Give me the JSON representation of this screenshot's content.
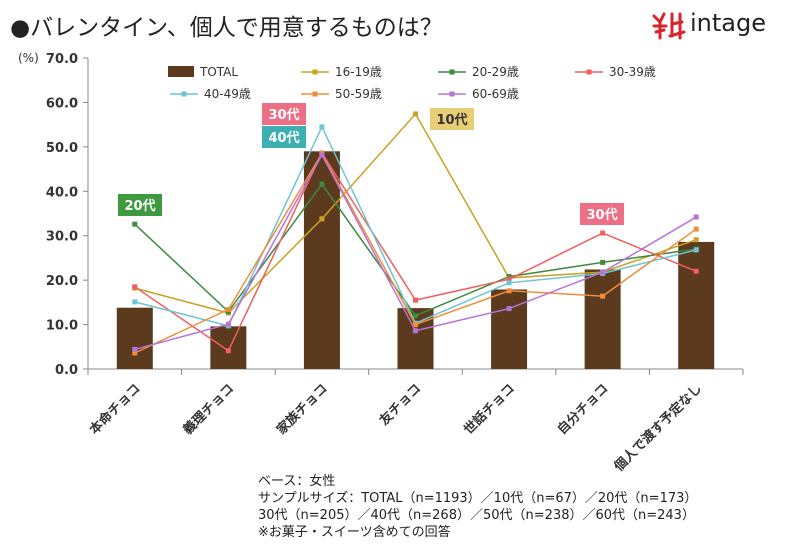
{
  "header": {
    "title": "●バレンタイン、個人で用意するものは？",
    "logo_text": "intage",
    "logo_mark_color": "#d7262b"
  },
  "chart_data": {
    "type": "bar",
    "y_unit": "(%)",
    "ylim": [
      0,
      70
    ],
    "yticks": [
      "0.0",
      "10.0",
      "20.0",
      "30.0",
      "40.0",
      "50.0",
      "60.0",
      "70.0"
    ],
    "grid": false,
    "legend_position": "top",
    "categories": [
      "本命チョコ",
      "義理チョコ",
      "家族チョコ",
      "友チョコ",
      "世話チョコ",
      "自分チョコ",
      "個人で渡す予定なし"
    ],
    "bar_series": {
      "name": "TOTAL",
      "color": "#5b3a1e",
      "values": [
        13.8,
        9.6,
        49.0,
        13.7,
        17.9,
        22.4,
        28.6
      ]
    },
    "line_series": [
      {
        "name": "16-19歳",
        "color": "#c9a227",
        "values": [
          18.2,
          12.6,
          33.8,
          57.4,
          20.5,
          21.8,
          29.1
        ]
      },
      {
        "name": "20-29歳",
        "color": "#3e8a3e",
        "values": [
          32.6,
          12.9,
          41.6,
          12.0,
          20.8,
          24.0,
          27.0
        ]
      },
      {
        "name": "30-39歳",
        "color": "#ef5f5f",
        "values": [
          18.5,
          4.1,
          48.6,
          15.5,
          20.2,
          30.6,
          22.0
        ]
      },
      {
        "name": "40-49歳",
        "color": "#6cc5d0",
        "values": [
          15.1,
          9.7,
          54.5,
          10.3,
          19.4,
          21.5,
          26.8
        ]
      },
      {
        "name": "50-59歳",
        "color": "#f08c3c",
        "values": [
          3.6,
          13.4,
          48.5,
          10.0,
          17.6,
          16.4,
          31.5
        ]
      },
      {
        "name": "60-69歳",
        "color": "#b873d8",
        "values": [
          4.4,
          10.1,
          48.2,
          8.6,
          13.6,
          21.8,
          34.2
        ]
      }
    ],
    "callouts": [
      {
        "text": "20代",
        "color": "#3f9a3f"
      },
      {
        "text": "30代",
        "color": "#ec6f86"
      },
      {
        "text": "40代",
        "color": "#3fb0b2"
      },
      {
        "text": "10代",
        "color": "#e8cf75"
      },
      {
        "text": "30代",
        "color": "#ec6f86"
      }
    ]
  },
  "notes": {
    "base": "ベース：女性",
    "sample_line1": "サンプルサイズ：TOTAL（n=1193）／10代（n=67）／20代（n=173）",
    "sample_line2": "30代（n=205）／40代（n=268）／50代（n=238）／60代（n=243）",
    "footnote": "※お菓子・スイーツ含めての回答"
  }
}
